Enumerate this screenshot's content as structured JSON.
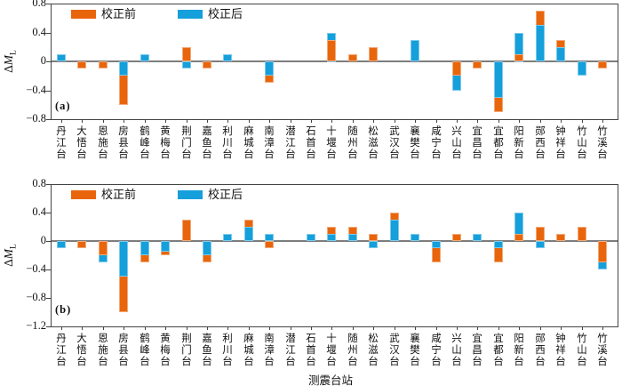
{
  "figure": {
    "xlabel": "测震台站",
    "ylabel_delta": "Δ",
    "ylabel_m": "M",
    "ylabel_sub": "L",
    "legend": [
      {
        "label": "校正前",
        "color": "#E8650C"
      },
      {
        "label": "校正后",
        "color": "#159FDB"
      }
    ],
    "frame_color": "#444444",
    "zero_line_color": "#7d7d7d"
  },
  "chart_data": {
    "type": "bar",
    "title": "",
    "xlabel": "测震台站",
    "ylabel": "ΔML",
    "grid": false,
    "legend_position": "top-left-inside",
    "categories": [
      "丹江台",
      "大悟台",
      "恩施台",
      "房县台",
      "鹤峰台",
      "黄梅台",
      "荆门台",
      "嘉鱼台",
      "利川台",
      "麻城台",
      "南漳台",
      "潜江台",
      "石首台",
      "十堰台",
      "随州台",
      "松滋台",
      "武汉台",
      "襄樊台",
      "咸宁台",
      "兴山台",
      "宜昌台",
      "宜都台",
      "阳新台",
      "郧西台",
      "钟祥台",
      "竹山台",
      "竹溪台"
    ],
    "panels": [
      {
        "label": "(a)",
        "ylim": [
          -0.8,
          0.8
        ],
        "ytick_labels": [
          "0.8",
          "0.4",
          "0",
          "−0.4",
          "−0.8"
        ],
        "ytick_values": [
          0.8,
          0.4,
          0,
          -0.4,
          -0.8
        ],
        "series": [
          {
            "name": "校正前",
            "color": "#E8650C",
            "values": [
              0,
              -0.1,
              -0.1,
              -0.6,
              0,
              0,
              0.2,
              -0.1,
              0,
              0,
              -0.3,
              0,
              0,
              0.3,
              0.1,
              0.2,
              0,
              0,
              0,
              -0.2,
              -0.1,
              -0.7,
              0.1,
              0.7,
              0.3,
              0,
              -0.1
            ]
          },
          {
            "name": "校正后",
            "color": "#159FDB",
            "values": [
              0.1,
              0,
              0,
              -0.2,
              0.1,
              0,
              -0.1,
              0,
              0.1,
              0,
              -0.2,
              0,
              0,
              0.4,
              0,
              0,
              0,
              0.3,
              0,
              -0.4,
              0,
              -0.5,
              0.4,
              0.5,
              0.2,
              -0.2,
              0
            ]
          }
        ]
      },
      {
        "label": "(b)",
        "ylim": [
          -1.2,
          0.8
        ],
        "ytick_labels": [
          "0.8",
          "0.4",
          "0",
          "−0.4",
          "−0.8",
          "−1.2"
        ],
        "ytick_values": [
          0.8,
          0.4,
          0,
          -0.4,
          -0.8,
          -1.2
        ],
        "series": [
          {
            "name": "校正前",
            "color": "#E8650C",
            "values": [
              0,
              -0.1,
              -0.2,
              -1.0,
              -0.3,
              -0.2,
              0.3,
              -0.3,
              0,
              0.3,
              -0.1,
              0,
              0,
              0.2,
              0.2,
              0.1,
              0.4,
              0,
              -0.3,
              0.1,
              0,
              -0.3,
              0.1,
              0.2,
              0.1,
              0.2,
              -0.3
            ]
          },
          {
            "name": "校正后",
            "color": "#159FDB",
            "values": [
              -0.1,
              0,
              -0.3,
              -0.5,
              -0.2,
              -0.15,
              0,
              -0.2,
              0.1,
              0.2,
              0.1,
              0,
              0.1,
              0.1,
              0.1,
              -0.1,
              0.3,
              0.1,
              -0.1,
              0,
              0.1,
              -0.1,
              0.4,
              -0.1,
              0,
              0,
              -0.4
            ]
          }
        ]
      }
    ]
  }
}
